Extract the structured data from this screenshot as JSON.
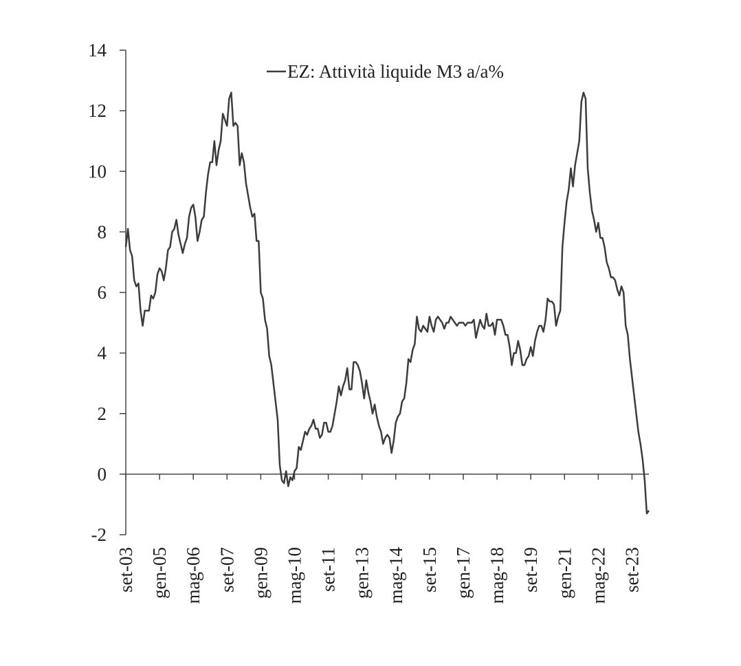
{
  "chart_data": {
    "type": "line",
    "title": "",
    "xlabel": "",
    "ylabel": "",
    "ylim": [
      -2,
      14
    ],
    "y_ticks": [
      -2,
      0,
      2,
      4,
      6,
      8,
      10,
      12,
      14
    ],
    "x_ticks": [
      "set-03",
      "gen-05",
      "mag-06",
      "set-07",
      "gen-09",
      "mag-10",
      "set-11",
      "gen-13",
      "mag-14",
      "set-15",
      "gen-17",
      "mag-18",
      "set-19",
      "gen-21",
      "mag-22",
      "set-23"
    ],
    "legend_position": "top-center",
    "grid": false,
    "colors": {
      "series": "#3c3c3c",
      "axis": "#444444"
    },
    "series": [
      {
        "name": "EZ: Attività liquide M3 a/a%",
        "points": [
          [
            "set-03",
            7.5
          ],
          [
            "ott-03",
            8.1
          ],
          [
            "nov-03",
            7.4
          ],
          [
            "dic-03",
            7.2
          ],
          [
            "gen-04",
            6.4
          ],
          [
            "feb-04",
            6.2
          ],
          [
            "mar-04",
            6.3
          ],
          [
            "apr-04",
            5.4
          ],
          [
            "mag-04",
            4.9
          ],
          [
            "giu-04",
            5.4
          ],
          [
            "lug-04",
            5.4
          ],
          [
            "ago-04",
            5.4
          ],
          [
            "set-04",
            5.9
          ],
          [
            "ott-04",
            5.8
          ],
          [
            "nov-04",
            6.0
          ],
          [
            "dic-04",
            6.6
          ],
          [
            "gen-05",
            6.8
          ],
          [
            "feb-05",
            6.7
          ],
          [
            "mar-05",
            6.4
          ],
          [
            "apr-05",
            6.8
          ],
          [
            "mag-05",
            7.4
          ],
          [
            "giu-05",
            7.5
          ],
          [
            "lug-05",
            8.0
          ],
          [
            "ago-05",
            8.1
          ],
          [
            "set-05",
            8.4
          ],
          [
            "ott-05",
            7.9
          ],
          [
            "nov-05",
            7.6
          ],
          [
            "dic-05",
            7.3
          ],
          [
            "gen-06",
            7.6
          ],
          [
            "feb-06",
            7.8
          ],
          [
            "mar-06",
            8.5
          ],
          [
            "apr-06",
            8.8
          ],
          [
            "mag-06",
            8.9
          ],
          [
            "giu-06",
            8.5
          ],
          [
            "lug-06",
            7.7
          ],
          [
            "ago-06",
            8.0
          ],
          [
            "set-06",
            8.4
          ],
          [
            "ott-06",
            8.5
          ],
          [
            "nov-06",
            9.3
          ],
          [
            "dic-06",
            9.9
          ],
          [
            "gen-07",
            10.3
          ],
          [
            "feb-07",
            10.3
          ],
          [
            "mar-07",
            11.0
          ],
          [
            "apr-07",
            10.2
          ],
          [
            "mag-07",
            10.7
          ],
          [
            "giu-07",
            11.0
          ],
          [
            "lug-07",
            11.9
          ],
          [
            "ago-07",
            11.7
          ],
          [
            "set-07",
            11.5
          ],
          [
            "ott-07",
            12.4
          ],
          [
            "nov-07",
            12.6
          ],
          [
            "dic-07",
            11.5
          ],
          [
            "gen-08",
            11.6
          ],
          [
            "feb-08",
            11.5
          ],
          [
            "mar-08",
            10.2
          ],
          [
            "apr-08",
            10.6
          ],
          [
            "mag-08",
            10.3
          ],
          [
            "giu-08",
            9.6
          ],
          [
            "lug-08",
            9.2
          ],
          [
            "ago-08",
            8.8
          ],
          [
            "set-08",
            8.5
          ],
          [
            "ott-08",
            8.6
          ],
          [
            "nov-08",
            7.7
          ],
          [
            "dic-08",
            7.7
          ],
          [
            "gen-09",
            6.0
          ],
          [
            "feb-09",
            5.8
          ],
          [
            "mar-09",
            5.1
          ],
          [
            "apr-09",
            4.8
          ],
          [
            "mag-09",
            3.9
          ],
          [
            "giu-09",
            3.6
          ],
          [
            "lug-09",
            3.0
          ],
          [
            "ago-09",
            2.4
          ],
          [
            "set-09",
            1.8
          ],
          [
            "ott-09",
            0.3
          ],
          [
            "nov-09",
            -0.2
          ],
          [
            "dic-09",
            -0.3
          ],
          [
            "gen-10",
            0.1
          ],
          [
            "feb-10",
            -0.4
          ],
          [
            "mar-10",
            -0.1
          ],
          [
            "apr-10",
            -0.2
          ],
          [
            "mag-10",
            0.1
          ],
          [
            "giu-10",
            0.2
          ],
          [
            "lug-10",
            0.9
          ],
          [
            "ago-10",
            0.8
          ],
          [
            "set-10",
            1.1
          ],
          [
            "ott-10",
            1.4
          ],
          [
            "nov-10",
            1.3
          ],
          [
            "dic-10",
            1.5
          ],
          [
            "gen-11",
            1.6
          ],
          [
            "feb-11",
            1.8
          ],
          [
            "mar-11",
            1.5
          ],
          [
            "apr-11",
            1.5
          ],
          [
            "mag-11",
            1.2
          ],
          [
            "giu-11",
            1.3
          ],
          [
            "lug-11",
            1.7
          ],
          [
            "ago-11",
            1.7
          ],
          [
            "set-11",
            1.4
          ],
          [
            "ott-11",
            1.4
          ],
          [
            "nov-11",
            1.6
          ],
          [
            "dic-11",
            2.0
          ],
          [
            "gen-12",
            2.4
          ],
          [
            "feb-12",
            2.9
          ],
          [
            "mar-12",
            2.6
          ],
          [
            "apr-12",
            2.9
          ],
          [
            "mag-12",
            3.1
          ],
          [
            "giu-12",
            3.5
          ],
          [
            "lug-12",
            2.8
          ],
          [
            "ago-12",
            2.8
          ],
          [
            "set-12",
            3.7
          ],
          [
            "ott-12",
            3.7
          ],
          [
            "nov-12",
            3.6
          ],
          [
            "dic-12",
            3.4
          ],
          [
            "gen-13",
            3.0
          ],
          [
            "feb-13",
            2.5
          ],
          [
            "mar-13",
            3.1
          ],
          [
            "apr-13",
            2.7
          ],
          [
            "mag-13",
            2.4
          ],
          [
            "giu-13",
            2.0
          ],
          [
            "lug-13",
            2.3
          ],
          [
            "ago-13",
            1.9
          ],
          [
            "set-13",
            1.6
          ],
          [
            "ott-13",
            1.4
          ],
          [
            "nov-13",
            1.0
          ],
          [
            "dic-13",
            1.2
          ],
          [
            "gen-14",
            1.3
          ],
          [
            "feb-14",
            1.2
          ],
          [
            "mar-14",
            0.7
          ],
          [
            "apr-14",
            1.1
          ],
          [
            "mag-14",
            1.7
          ],
          [
            "giu-14",
            1.9
          ],
          [
            "lug-14",
            2.0
          ],
          [
            "ago-14",
            2.4
          ],
          [
            "set-14",
            2.5
          ],
          [
            "ott-14",
            3.0
          ],
          [
            "nov-14",
            3.8
          ],
          [
            "dic-14",
            3.7
          ],
          [
            "gen-15",
            4.1
          ],
          [
            "feb-15",
            4.3
          ],
          [
            "mar-15",
            5.2
          ],
          [
            "apr-15",
            4.8
          ],
          [
            "mag-15",
            4.7
          ],
          [
            "giu-15",
            4.9
          ],
          [
            "lug-15",
            4.8
          ],
          [
            "ago-15",
            4.7
          ],
          [
            "set-15",
            5.2
          ],
          [
            "ott-15",
            4.9
          ],
          [
            "nov-15",
            4.7
          ],
          [
            "dic-15",
            5.1
          ],
          [
            "gen-16",
            5.2
          ],
          [
            "feb-16",
            5.1
          ],
          [
            "mar-16",
            5.0
          ],
          [
            "apr-16",
            4.8
          ],
          [
            "mag-16",
            5.0
          ],
          [
            "giu-16",
            5.0
          ],
          [
            "lug-16",
            5.2
          ],
          [
            "ago-16",
            5.1
          ],
          [
            "set-16",
            5.0
          ],
          [
            "ott-16",
            4.9
          ],
          [
            "nov-16",
            5.0
          ],
          [
            "dic-16",
            5.0
          ],
          [
            "gen-17",
            5.0
          ],
          [
            "feb-17",
            4.9
          ],
          [
            "mar-17",
            5.0
          ],
          [
            "apr-17",
            5.0
          ],
          [
            "mag-17",
            5.0
          ],
          [
            "giu-17",
            5.1
          ],
          [
            "lug-17",
            4.5
          ],
          [
            "ago-17",
            4.8
          ],
          [
            "set-17",
            5.1
          ],
          [
            "ott-17",
            4.9
          ],
          [
            "nov-17",
            4.8
          ],
          [
            "dic-17",
            5.3
          ],
          [
            "gen-18",
            4.9
          ],
          [
            "feb-18",
            4.9
          ],
          [
            "mar-18",
            5.0
          ],
          [
            "apr-18",
            4.6
          ],
          [
            "mag-18",
            5.1
          ],
          [
            "giu-18",
            5.1
          ],
          [
            "lug-18",
            5.1
          ],
          [
            "ago-18",
            4.9
          ],
          [
            "set-18",
            4.6
          ],
          [
            "ott-18",
            4.6
          ],
          [
            "nov-18",
            4.2
          ],
          [
            "dic-18",
            3.6
          ],
          [
            "gen-19",
            4.0
          ],
          [
            "feb-19",
            4.0
          ],
          [
            "mar-19",
            4.4
          ],
          [
            "apr-19",
            4.1
          ],
          [
            "mag-19",
            3.6
          ],
          [
            "giu-19",
            3.6
          ],
          [
            "lug-19",
            3.8
          ],
          [
            "ago-19",
            3.9
          ],
          [
            "set-19",
            4.2
          ],
          [
            "ott-19",
            3.9
          ],
          [
            "nov-19",
            4.4
          ],
          [
            "dic-19",
            4.7
          ],
          [
            "gen-20",
            4.9
          ],
          [
            "feb-20",
            4.9
          ],
          [
            "mar-20",
            4.7
          ],
          [
            "apr-20",
            5.1
          ],
          [
            "mag-20",
            5.8
          ],
          [
            "giu-20",
            5.7
          ],
          [
            "lug-20",
            5.7
          ],
          [
            "ago-20",
            5.6
          ],
          [
            "set-20",
            4.9
          ],
          [
            "ott-20",
            5.2
          ],
          [
            "nov-20",
            5.4
          ],
          [
            "dic-20",
            7.5
          ],
          [
            "gen-21",
            8.3
          ],
          [
            "feb-21",
            9.0
          ],
          [
            "mar-21",
            9.4
          ],
          [
            "apr-21",
            10.1
          ],
          [
            "mag-21",
            9.5
          ],
          [
            "giu-21",
            10.2
          ],
          [
            "lug-21",
            10.6
          ],
          [
            "ago-21",
            11.0
          ],
          [
            "set-21",
            12.3
          ],
          [
            "ott-21",
            12.6
          ],
          [
            "nov-21",
            12.4
          ],
          [
            "dic-21",
            10.1
          ],
          [
            "gen-22",
            9.3
          ],
          [
            "feb-22",
            8.7
          ],
          [
            "mar-22",
            8.4
          ],
          [
            "apr-22",
            8.0
          ],
          [
            "mag-22",
            8.3
          ],
          [
            "giu-22",
            7.8
          ],
          [
            "lug-22",
            7.8
          ],
          [
            "ago-22",
            7.5
          ],
          [
            "set-22",
            7.0
          ],
          [
            "ott-22",
            6.8
          ],
          [
            "nov-22",
            6.5
          ],
          [
            "dic-22",
            6.5
          ],
          [
            "gen-23",
            6.4
          ],
          [
            "feb-23",
            6.1
          ],
          [
            "mar-23",
            5.9
          ],
          [
            "apr-23",
            6.2
          ],
          [
            "mag-23",
            6.0
          ],
          [
            "giu-23",
            4.9
          ],
          [
            "lug-23",
            4.6
          ],
          [
            "ago-23",
            3.8
          ],
          [
            "set-23",
            3.2
          ],
          [
            "ott-23",
            2.6
          ],
          [
            "nov-23",
            2.0
          ],
          [
            "dic-23",
            1.4
          ],
          [
            "gen-24",
            1.0
          ],
          [
            "feb-24",
            0.5
          ],
          [
            "mar-24",
            -0.2
          ],
          [
            "apr-24",
            -1.3
          ],
          [
            "mag-24",
            -1.2
          ]
        ]
      }
    ]
  }
}
